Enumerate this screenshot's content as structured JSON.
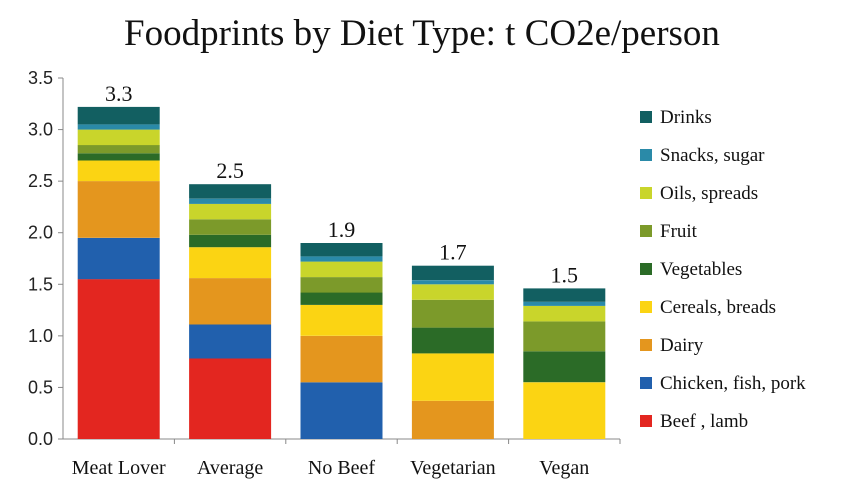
{
  "chart_data": {
    "type": "bar",
    "stacked": true,
    "title": "Foodprints by Diet Type: t CO2e/person",
    "xlabel": "",
    "ylabel": "",
    "ylim": [
      0,
      3.5
    ],
    "yticks": [
      "0.0",
      "0.5",
      "1.0",
      "1.5",
      "2.0",
      "2.5",
      "3.0",
      "3.5"
    ],
    "ytick_values": [
      0,
      0.5,
      1.0,
      1.5,
      2.0,
      2.5,
      3.0,
      3.5
    ],
    "grid": false,
    "legend_position": "right",
    "categories": [
      "Meat Lover",
      "Average",
      "No Beef",
      "Vegetarian",
      "Vegan"
    ],
    "totals": [
      "3.3",
      "2.5",
      "1.9",
      "1.7",
      "1.5"
    ],
    "series": [
      {
        "name": "Beef , lamb",
        "color": "#e32620",
        "values": [
          1.55,
          0.78,
          0,
          0,
          0
        ]
      },
      {
        "name": "Chicken, fish, pork",
        "color": "#2160ad",
        "values": [
          0.4,
          0.33,
          0.55,
          0,
          0
        ]
      },
      {
        "name": "Dairy",
        "color": "#e4961e",
        "values": [
          0.55,
          0.45,
          0.45,
          0.37,
          0
        ]
      },
      {
        "name": "Cereals, breads",
        "color": "#fbd413",
        "values": [
          0.2,
          0.3,
          0.3,
          0.46,
          0.55
        ]
      },
      {
        "name": "Vegetables",
        "color": "#2b6b27",
        "values": [
          0.07,
          0.12,
          0.12,
          0.25,
          0.3
        ]
      },
      {
        "name": "Fruit",
        "color": "#7c9a2a",
        "values": [
          0.08,
          0.15,
          0.15,
          0.27,
          0.29
        ]
      },
      {
        "name": "Oils, spreads",
        "color": "#c9d52b",
        "values": [
          0.15,
          0.15,
          0.15,
          0.15,
          0.15
        ]
      },
      {
        "name": "Snacks, sugar",
        "color": "#2a8aa8",
        "values": [
          0.05,
          0.05,
          0.05,
          0.04,
          0.04
        ]
      },
      {
        "name": "Drinks",
        "color": "#125f61",
        "values": [
          0.17,
          0.14,
          0.13,
          0.14,
          0.13
        ]
      }
    ]
  }
}
